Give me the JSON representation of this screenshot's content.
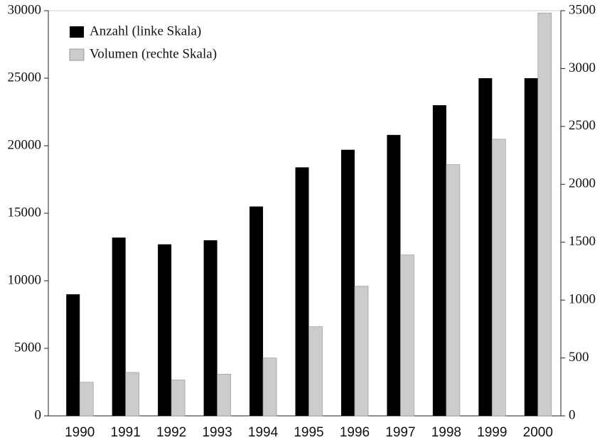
{
  "chart_data": {
    "type": "bar",
    "categories": [
      "1990",
      "1991",
      "1992",
      "1993",
      "1994",
      "1995",
      "1996",
      "1997",
      "1998",
      "1999",
      "2000"
    ],
    "series": [
      {
        "name": "Anzahl (linke Skala)",
        "color": "#000000",
        "values": [
          9000,
          13200,
          12700,
          13000,
          15500,
          18400,
          19700,
          20800,
          23000,
          25000,
          25000
        ]
      },
      {
        "name": "Volumen (rechte Skala)",
        "color": "#cccccc",
        "axis": "y2",
        "values": [
          290,
          375,
          310,
          360,
          500,
          770,
          1120,
          1390,
          2170,
          2390,
          3480
        ]
      }
    ],
    "ylim": [
      0,
      30000
    ],
    "yticks": [
      0,
      5000,
      10000,
      15000,
      20000,
      25000,
      30000
    ],
    "y2lim": [
      0,
      3500
    ],
    "y2ticks": [
      0,
      500,
      1000,
      1500,
      2000,
      2500,
      3000,
      3500
    ],
    "legend": "upper-left"
  }
}
